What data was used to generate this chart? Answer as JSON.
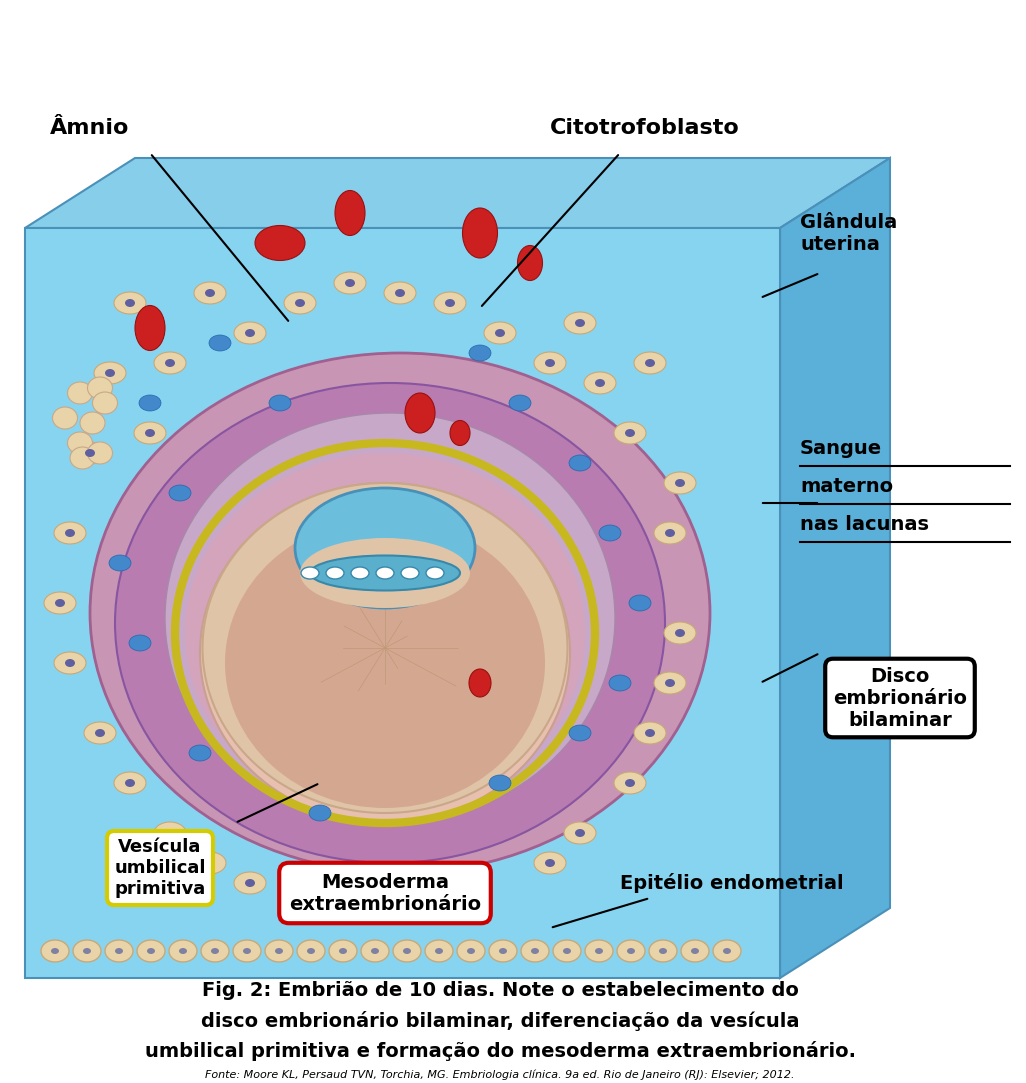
{
  "title_line1": "Fig. 2: Embrião de 10 dias. Note o estabelecimento do",
  "title_line2": "disco embrionário bilaminar, diferenciação da vesícula",
  "title_line3": "umbilical primitiva e formação do mesoderma extraembrionário.",
  "fonte": "Fonte: Moore KL, Persaud TVN, Torchia, MG. Embriologia clínica. 9a ed. Rio de Janeiro (RJ): Elsevier; 2012.",
  "labels": {
    "amnio": "Âmnio",
    "citotrofoblasto": "Citotrofoblasto",
    "glandula_uterina": "Glândula\nuterina",
    "sangue_materno": "Sangue\nmaterno\nnas lacunas",
    "disco_embrionario": "Disco\nembrionário\nbilaminar",
    "vesicula_umbilical": "Vesícula\numbilical\nprimitiva",
    "mesoderma": "Mesoderma\nextraembrionário",
    "epitelio": "Epitélio endometrial"
  },
  "bg_color": "#ffffff",
  "box_color": "#7ecfed",
  "endometrium_color": "#d4a0c0",
  "vesicle_color": "#e8c8a0",
  "amnio_blue": "#6bbfdc",
  "yolk_sac_color": "#ddb870",
  "mesoderma_purple": "#c8a0c8"
}
